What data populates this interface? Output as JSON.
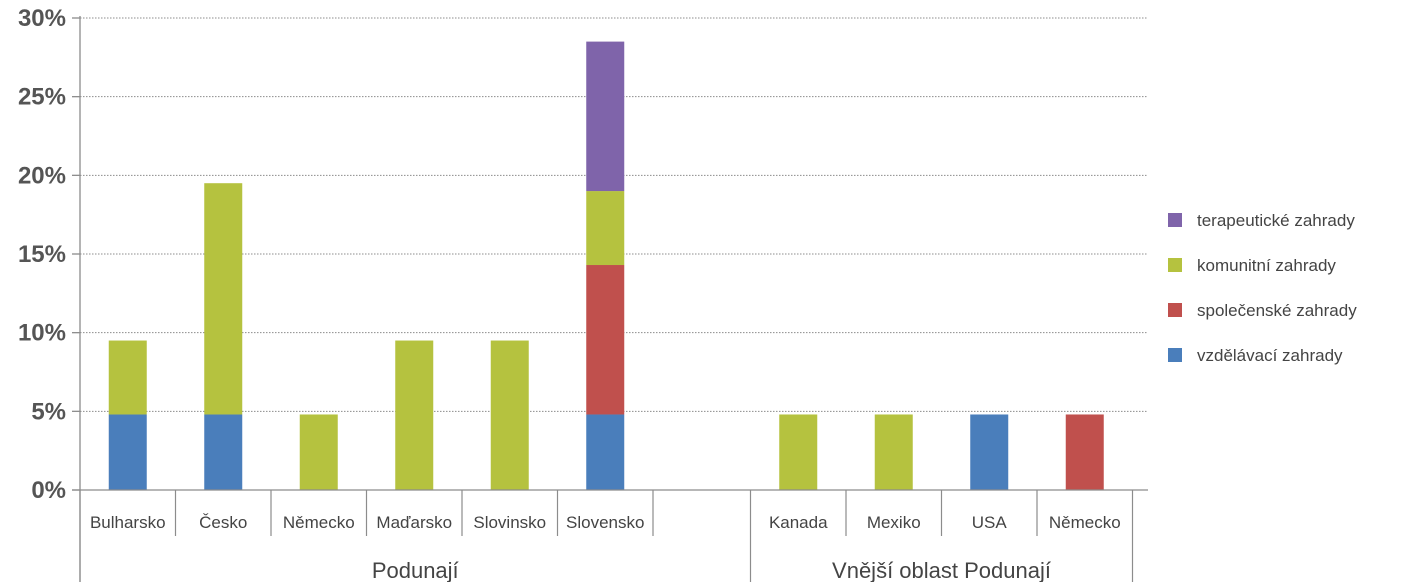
{
  "chart_data": {
    "type": "bar",
    "stacked": true,
    "y_axis": {
      "min": 0,
      "max": 30,
      "ticks": [
        0,
        5,
        10,
        15,
        20,
        25,
        30
      ],
      "tick_labels": [
        "0%",
        "5%",
        "10%",
        "15%",
        "20%",
        "25%",
        "30%"
      ],
      "grid": "dotted"
    },
    "groups": [
      {
        "label": "Podunají",
        "categories": [
          "Bulharsko",
          "Česko",
          "Německo",
          "Maďarsko",
          "Slovinsko",
          "Slovensko",
          ""
        ]
      },
      {
        "label": "Vnější oblast Podunají",
        "categories": [
          "Kanada",
          "Mexiko",
          "USA",
          "Německo"
        ]
      }
    ],
    "categories": [
      "Bulharsko",
      "Česko",
      "Německo",
      "Maďarsko",
      "Slovinsko",
      "Slovensko",
      "",
      "Kanada",
      "Mexiko",
      "USA",
      "Německo"
    ],
    "series": [
      {
        "name": "vzdělávací zahrady",
        "color": "#4a7ebb",
        "values": [
          4.8,
          4.8,
          0,
          0,
          0,
          4.8,
          0,
          0,
          0,
          4.8,
          0
        ]
      },
      {
        "name": "společenské zahrady",
        "color": "#c0504d",
        "values": [
          0,
          0,
          0,
          0,
          0,
          9.5,
          0,
          0,
          0,
          0,
          4.8
        ]
      },
      {
        "name": "komunitní zahrady",
        "color": "#b5c23f",
        "values": [
          4.7,
          14.7,
          4.8,
          9.5,
          9.5,
          4.7,
          0,
          4.8,
          4.8,
          0,
          0
        ]
      },
      {
        "name": "terapeutické zahrady",
        "color": "#7f64aa",
        "values": [
          0,
          0,
          0,
          0,
          0,
          9.5,
          0,
          0,
          0,
          0,
          0
        ]
      }
    ],
    "legend_order": [
      "terapeutické zahrady",
      "komunitní zahrady",
      "společenské zahrady",
      "vzdělávací zahrady"
    ],
    "legend_position": "right",
    "title": "",
    "xlabel": "",
    "ylabel": ""
  }
}
